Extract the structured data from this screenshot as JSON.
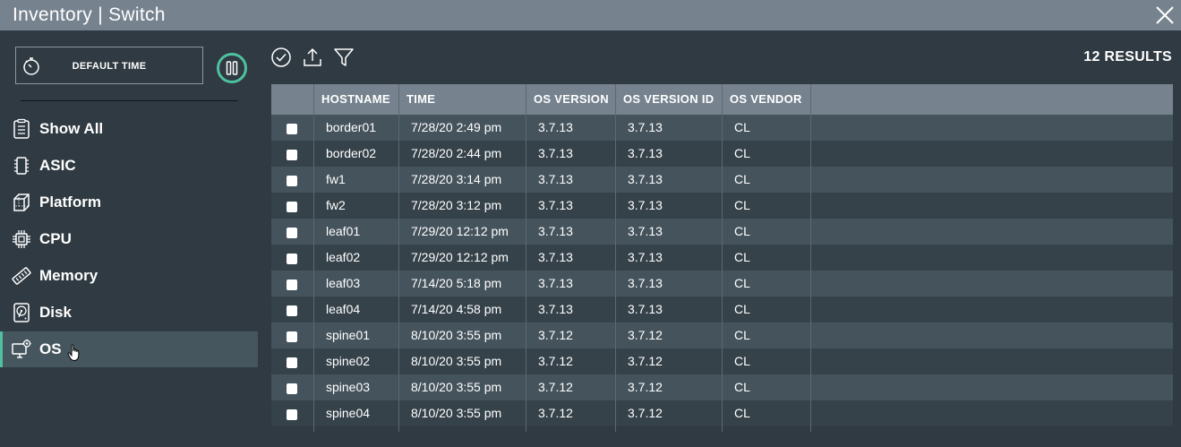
{
  "window": {
    "title": "Inventory | Switch"
  },
  "sidebar": {
    "time_button_label": "DEFAULT TIME",
    "items": [
      {
        "label": "Show All",
        "icon": "clipboard-icon"
      },
      {
        "label": "ASIC",
        "icon": "chip-icon"
      },
      {
        "label": "Platform",
        "icon": "cube-icon"
      },
      {
        "label": "CPU",
        "icon": "cpu-icon"
      },
      {
        "label": "Memory",
        "icon": "memory-icon"
      },
      {
        "label": "Disk",
        "icon": "disk-icon"
      },
      {
        "label": "OS",
        "icon": "os-monitor-icon",
        "active": true
      }
    ]
  },
  "toolbar": {
    "results": "12 RESULTS"
  },
  "table": {
    "columns": [
      "HOSTNAME",
      "TIME",
      "OS VERSION",
      "OS VERSION ID",
      "OS VENDOR"
    ],
    "rows": [
      [
        "border01",
        "7/28/20 2:49 pm",
        "3.7.13",
        "3.7.13",
        "CL"
      ],
      [
        "border02",
        "7/28/20 2:44 pm",
        "3.7.13",
        "3.7.13",
        "CL"
      ],
      [
        "fw1",
        "7/28/20 3:14 pm",
        "3.7.13",
        "3.7.13",
        "CL"
      ],
      [
        "fw2",
        "7/28/20 3:12 pm",
        "3.7.13",
        "3.7.13",
        "CL"
      ],
      [
        "leaf01",
        "7/29/20 12:12 pm",
        "3.7.13",
        "3.7.13",
        "CL"
      ],
      [
        "leaf02",
        "7/29/20 12:12 pm",
        "3.7.13",
        "3.7.13",
        "CL"
      ],
      [
        "leaf03",
        "7/14/20 5:18 pm",
        "3.7.13",
        "3.7.13",
        "CL"
      ],
      [
        "leaf04",
        "7/14/20 4:58 pm",
        "3.7.13",
        "3.7.13",
        "CL"
      ],
      [
        "spine01",
        "8/10/20 3:55 pm",
        "3.7.12",
        "3.7.12",
        "CL"
      ],
      [
        "spine02",
        "8/10/20 3:55 pm",
        "3.7.12",
        "3.7.12",
        "CL"
      ],
      [
        "spine03",
        "8/10/20 3:55 pm",
        "3.7.12",
        "3.7.12",
        "CL"
      ],
      [
        "spine04",
        "8/10/20 3:55 pm",
        "3.7.12",
        "3.7.12",
        "CL"
      ]
    ]
  },
  "colors": {
    "accent": "#4fc0a0",
    "header": "#76838f",
    "background": "#2f3a42"
  }
}
